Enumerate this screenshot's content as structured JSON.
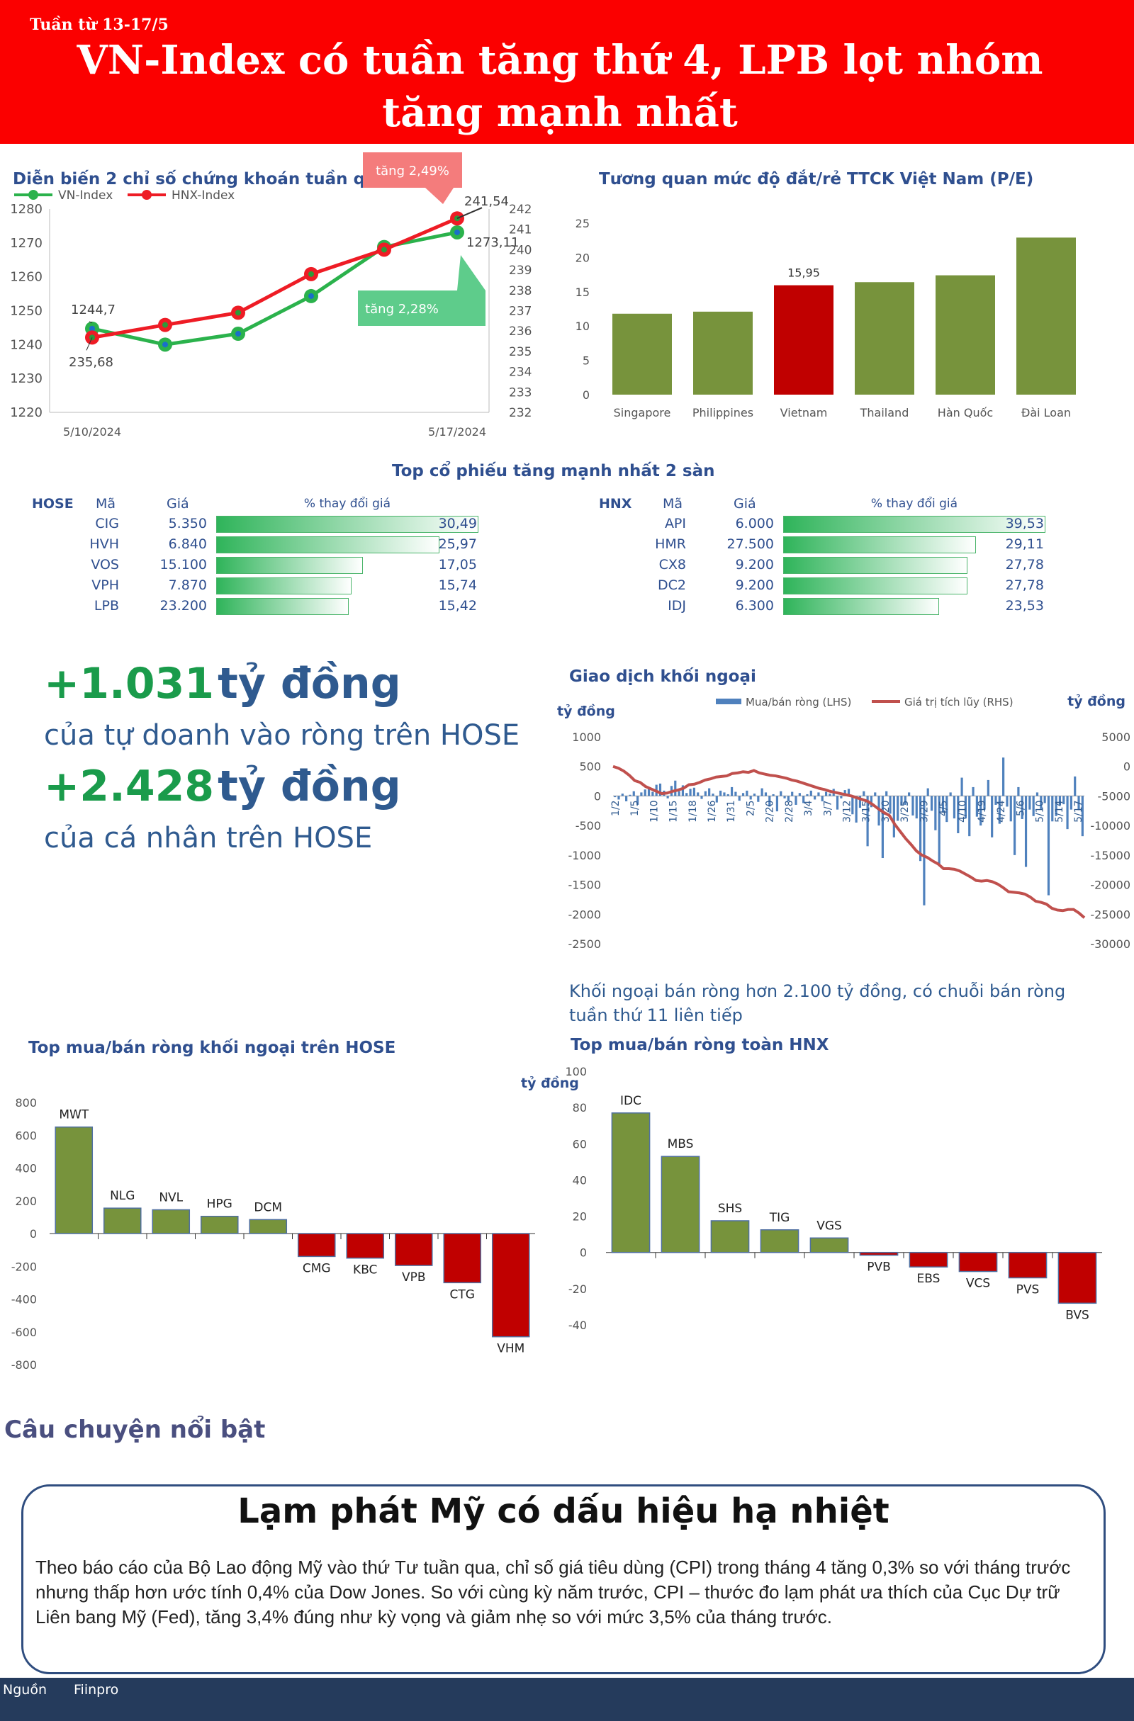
{
  "header": {
    "week": "Tuần từ 13-17/5",
    "title": "VN-Index có tuần tăng thứ 4, LPB lọt nhóm tăng mạnh nhất"
  },
  "highlights": {
    "prop_value": "+1.031",
    "prop_unit": "tỷ đồng",
    "prop_desc": "của tự doanh vào ròng trên HOSE",
    "indiv_value": "+2.428",
    "indiv_unit": "tỷ đồng",
    "indiv_desc": "của cá nhân trên HOSE"
  },
  "top_gainers": {
    "title": "Top cổ phiếu tăng mạnh nhất 2 sàn",
    "hose": {
      "exchange": "HOSE",
      "col_code": "Mã",
      "col_price": "Giá",
      "col_change": "% thay đổi giá",
      "rows": [
        {
          "code": "CIG",
          "price": "5.350",
          "change": "30,49",
          "value": 30.49
        },
        {
          "code": "HVH",
          "price": "6.840",
          "change": "25,97",
          "value": 25.97
        },
        {
          "code": "VOS",
          "price": "15.100",
          "change": "17,05",
          "value": 17.05
        },
        {
          "code": "VPH",
          "price": "7.870",
          "change": "15,74",
          "value": 15.74
        },
        {
          "code": "LPB",
          "price": "23.200",
          "change": "15,42",
          "value": 15.42
        }
      ]
    },
    "hnx": {
      "exchange": "HNX",
      "col_code": "Mã",
      "col_price": "Giá",
      "col_change": "% thay đổi giá",
      "rows": [
        {
          "code": "API",
          "price": "6.000",
          "change": "39,53",
          "value": 39.53
        },
        {
          "code": "HMR",
          "price": "27.500",
          "change": "29,11",
          "value": 29.11
        },
        {
          "code": "CX8",
          "price": "9.200",
          "change": "27,78",
          "value": 27.78
        },
        {
          "code": "DC2",
          "price": "9.200",
          "change": "27,78",
          "value": 27.78
        },
        {
          "code": "IDJ",
          "price": "6.300",
          "change": "23,53",
          "value": 23.53
        }
      ]
    }
  },
  "foreign_note": "Khối ngoại bán ròng hơn 2.100 tỷ đồng, có chuỗi bán ròng tuần thứ 11 liên tiếp",
  "story": {
    "section_title": "Câu chuyện nổi bật",
    "headline": "Lạm phát Mỹ có dấu hiệu hạ nhiệt",
    "body": "Theo báo cáo của Bộ Lao động Mỹ vào thứ Tư tuần qua, chỉ số giá tiêu dùng (CPI) trong tháng 4 tăng 0,3% so với tháng trước nhưng thấp hơn ước tính 0,4% của Dow Jones. So với cùng kỳ năm trước, CPI – thước đo lạm phát ưa thích của Cục Dự trữ Liên bang Mỹ (Fed), tăng 3,4% đúng như kỳ vọng và giảm nhẹ so với mức 3,5% của tháng trước."
  },
  "footer": {
    "source_label": "Nguồn",
    "source": "Fiinpro"
  },
  "colors": {
    "red": "#c00000",
    "green": "#77933c",
    "vn_line": "#2bb24c",
    "hnx_line": "#ee1c25",
    "blue": "#4f81bd",
    "navy": "#2f4f8f"
  },
  "chart_data": [
    {
      "id": "index",
      "type": "line",
      "title": "Diễn biến 2 chỉ số chứng khoán tuần qua",
      "x_labels": [
        "5/10/2024",
        "5/17/2024"
      ],
      "series": [
        {
          "name": "VN-Index",
          "axis": "left",
          "values": [
            1244.7,
            1240,
            1243.2,
            1254.3,
            1268.8,
            1273.11
          ]
        },
        {
          "name": "HNX-Index",
          "axis": "right",
          "values": [
            235.68,
            236.3,
            236.9,
            238.8,
            240.0,
            241.54
          ]
        }
      ],
      "left_ticks": [
        1220,
        1230,
        1240,
        1250,
        1260,
        1270,
        1280
      ],
      "right_ticks": [
        232,
        233,
        234,
        235,
        236,
        237,
        238,
        239,
        240,
        241,
        242
      ],
      "ylim_left": [
        1220,
        1280
      ],
      "ylim_right": [
        232,
        242
      ],
      "labels": {
        "vn_start": "1244,7",
        "vn_end": "1273,11",
        "hnx_start": "235,68",
        "hnx_end": "241,54"
      },
      "callouts": {
        "hnx": "tăng 2,49%",
        "vn": "tăng 2,28%"
      }
    },
    {
      "id": "pe",
      "type": "bar",
      "title": "Tương quan mức độ đắt/rẻ TTCK Việt Nam (P/E)",
      "categories": [
        "Singapore",
        "Philippines",
        "Vietnam",
        "Thailand",
        "Hàn Quốc",
        "Đài Loan"
      ],
      "values": [
        11.8,
        12.1,
        15.95,
        16.4,
        17.4,
        22.9
      ],
      "highlight": "Vietnam",
      "highlight_label": "15,95",
      "ticks": [
        0,
        5,
        10,
        15,
        20,
        25
      ],
      "ylim": [
        0,
        25
      ]
    },
    {
      "id": "foreign",
      "type": "bar+line",
      "title": "Giao dịch khối ngoại",
      "ylabel_left": "tỷ đồng",
      "ylabel_right": "tỷ đồng",
      "legend": [
        "Mua/bán ròng (LHS)",
        "Giá trị tích lũy (RHS)"
      ],
      "date_labels": [
        "1/2",
        "1/5",
        "1/10",
        "1/15",
        "1/18",
        "1/26",
        "1/31",
        "2/5",
        "2/20",
        "2/28",
        "3/4",
        "3/7",
        "3/12",
        "3/15",
        "3/20",
        "3/25",
        "3/29",
        "4/5",
        "4/10",
        "4/19",
        "4/24",
        "5/6",
        "5/10",
        "5/14",
        "5/17"
      ],
      "left_ticks": [
        1000,
        500,
        0,
        -500,
        -1000,
        -1500,
        -2000,
        -2500
      ],
      "right_ticks": [
        5000,
        0,
        -5000,
        -10000,
        -15000,
        -20000,
        -25000,
        -30000
      ],
      "ylim_left": [
        -2500,
        1000
      ],
      "ylim_right": [
        -30000,
        5000
      ],
      "bars": [
        -20,
        -60,
        40,
        -90,
        20,
        80,
        -150,
        60,
        110,
        150,
        70,
        190,
        210,
        90,
        -40,
        170,
        260,
        80,
        180,
        50,
        120,
        140,
        60,
        -50,
        80,
        130,
        40,
        -110,
        90,
        60,
        30,
        150,
        70,
        -80,
        50,
        90,
        -60,
        40,
        -100,
        130,
        60,
        -180,
        30,
        -260,
        80,
        -40,
        -90,
        70,
        -150,
        50,
        -120,
        30,
        90,
        -60,
        60,
        -90,
        70,
        40,
        120,
        -230,
        -40,
        100,
        120,
        -310,
        -450,
        -200,
        80,
        -850,
        -190,
        60,
        -500,
        -1050,
        80,
        -300,
        -700,
        -420,
        -160,
        -150,
        60,
        -330,
        -380,
        -1100,
        -1850,
        130,
        -250,
        -580,
        -1150,
        -280,
        -440,
        60,
        -380,
        -630,
        310,
        -380,
        -680,
        150,
        -350,
        -500,
        -230,
        270,
        -700,
        -150,
        -470,
        650,
        -180,
        -430,
        -1000,
        150,
        -390,
        -1200,
        -230,
        -340,
        60,
        -220,
        -120,
        -1680,
        -430,
        -340,
        -150,
        -140,
        -560,
        -230,
        330,
        -240,
        -680
      ],
      "cumulative": [
        0,
        -300,
        -800,
        -1500,
        -2400,
        -2700,
        -3400,
        -3800,
        -4200,
        -4600,
        -4500,
        -4200,
        -4000,
        -3700,
        -3100,
        -3000,
        -2700,
        -2300,
        -2100,
        -1800,
        -1700,
        -1600,
        -1200,
        -1100,
        -900,
        -1000,
        -700,
        -1100,
        -1300,
        -1500,
        -1600,
        -1800,
        -2000,
        -2300,
        -2500,
        -2800,
        -3100,
        -3400,
        -3700,
        -3900,
        -4200,
        -4400,
        -4600,
        -4800,
        -5000,
        -5300,
        -5600,
        -5900,
        -6500,
        -7200,
        -7800,
        -8300,
        -9800,
        -11000,
        -12200,
        -13200,
        -14300,
        -15000,
        -15400,
        -16000,
        -16500,
        -17300,
        -17300,
        -17400,
        -17700,
        -18200,
        -18700,
        -19300,
        -19400,
        -19300,
        -19500,
        -19900,
        -20500,
        -21200,
        -21300,
        -21400,
        -21600,
        -22100,
        -22800,
        -23000,
        -23300,
        -24000,
        -24300,
        -24400,
        -24200,
        -24200,
        -24800,
        -25600
      ]
    },
    {
      "id": "hose_foreign",
      "type": "bar",
      "title": "Top mua/bán ròng khối ngoại trên HOSE",
      "ylabel": "tỷ đồng",
      "categories": [
        "MWT",
        "NLG",
        "NVL",
        "HPG",
        "DCM",
        "CMG",
        "KBC",
        "VPB",
        "CTG",
        "VHM"
      ],
      "values": [
        650,
        155,
        145,
        105,
        85,
        -140,
        -150,
        -195,
        -300,
        -630
      ],
      "ticks": [
        800,
        600,
        400,
        200,
        0,
        -200,
        -400,
        -600,
        -800
      ],
      "ylim": [
        -800,
        800
      ]
    },
    {
      "id": "hnx_foreign",
      "type": "bar",
      "title": "Top mua/bán ròng toàn HNX",
      "categories": [
        "IDC",
        "MBS",
        "SHS",
        "TIG",
        "VGS",
        "PVB",
        "EBS",
        "VCS",
        "PVS",
        "BVS"
      ],
      "values": [
        77,
        53,
        17.5,
        12.5,
        8,
        -1.5,
        -8,
        -10.5,
        -14,
        -28
      ],
      "ticks": [
        100,
        80,
        60,
        40,
        20,
        0,
        -20,
        -40
      ],
      "ylim": [
        -40,
        100
      ]
    }
  ]
}
